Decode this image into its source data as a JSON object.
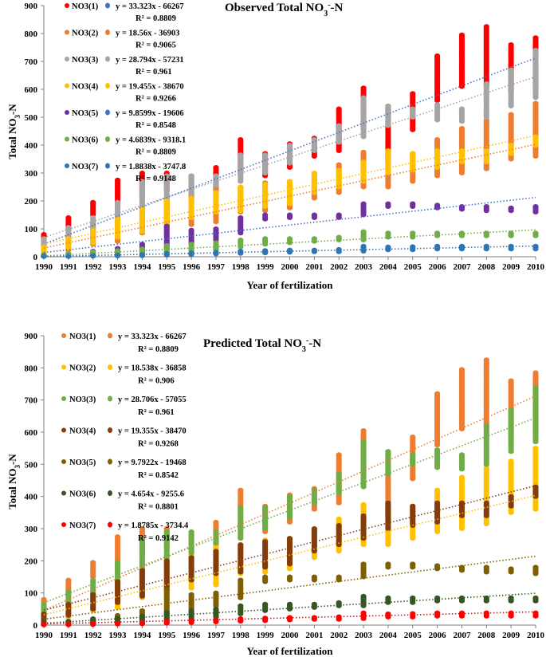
{
  "chart_data": [
    {
      "type": "scatter",
      "title_main": "Observed Total NO",
      "title_sub": "3",
      "title_sup": "-",
      "title_end": "-N",
      "xlabel": "Year of fertilization",
      "ylabel_main": "Total NO",
      "ylabel_sub": "3",
      "ylabel_end": "-N",
      "xlim": [
        1990,
        2010
      ],
      "ylim": [
        0,
        900
      ],
      "yticks": [
        0,
        100,
        200,
        300,
        400,
        500,
        600,
        700,
        800,
        900
      ],
      "years": [
        1990,
        1991,
        1992,
        1993,
        1994,
        1995,
        1996,
        1997,
        1998,
        1999,
        2000,
        2001,
        2002,
        2003,
        2004,
        2005,
        2006,
        2007,
        2008,
        2009,
        2010
      ],
      "series": [
        {
          "name": "NO3(1)",
          "color": "#ff0000",
          "trend_color": "#4472c4",
          "equation": "y = 33.323x - 66267",
          "r2": "R² = 0.8809",
          "slope": 33.323,
          "intercept": -66267,
          "min": [
            45,
            95,
            150,
            170,
            210,
            235,
            210,
            245,
            300,
            290,
            320,
            360,
            380,
            460,
            340,
            455,
            560,
            610,
            610,
            590,
            600
          ],
          "max": [
            80,
            140,
            195,
            275,
            300,
            300,
            290,
            320,
            420,
            370,
            405,
            425,
            530,
            605,
            540,
            585,
            720,
            795,
            825,
            760,
            785
          ]
        },
        {
          "name": "NO3(2)",
          "color": "#ed7d31",
          "trend_color": "#ed7d31",
          "equation": "y = 18.56x - 36903",
          "r2": "R² = 0.9065",
          "slope": 18.56,
          "intercept": -36903,
          "min": [
            5,
            25,
            45,
            55,
            85,
            85,
            115,
            125,
            160,
            165,
            175,
            210,
            230,
            250,
            250,
            270,
            290,
            300,
            315,
            350,
            360
          ],
          "max": [
            40,
            75,
            110,
            130,
            175,
            195,
            230,
            245,
            250,
            265,
            270,
            295,
            330,
            375,
            370,
            370,
            420,
            460,
            490,
            510,
            550
          ]
        },
        {
          "name": "NO3(3)",
          "color": "#a5a5a5",
          "trend_color": "#a5a5a5",
          "equation": "y = 28.794x - 57231",
          "r2": "R² = 0.961",
          "slope": 28.794,
          "intercept": -57231,
          "min": [
            30,
            65,
            95,
            120,
            170,
            185,
            225,
            255,
            270,
            300,
            335,
            380,
            410,
            430,
            470,
            500,
            490,
            485,
            500,
            540,
            570
          ],
          "max": [
            65,
            105,
            140,
            195,
            270,
            290,
            290,
            290,
            365,
            365,
            400,
            420,
            470,
            570,
            540,
            530,
            545,
            530,
            620,
            670,
            740
          ]
        },
        {
          "name": "NO3(4)",
          "color": "#ffc000",
          "trend_color": "#ffc000",
          "equation": "y = 19.455x - 38670",
          "r2": "R² = 0.9266",
          "slope": 19.455,
          "intercept": -38670,
          "min": [
            10,
            30,
            50,
            70,
            90,
            110,
            140,
            160,
            165,
            180,
            190,
            230,
            250,
            270,
            300,
            310,
            320,
            340,
            340,
            370,
            400
          ],
          "max": [
            35,
            65,
            95,
            135,
            170,
            200,
            210,
            230,
            250,
            260,
            270,
            300,
            310,
            340,
            380,
            370,
            380,
            380,
            380,
            400,
            430
          ]
        },
        {
          "name": "NO3(5)",
          "color": "#7030a0",
          "trend_color": "#4472c4",
          "equation": "y = 9.8599x - 19606",
          "r2": "R² = 0.8548",
          "slope": 9.8599,
          "intercept": -19606,
          "min": [
            2,
            4,
            6,
            10,
            15,
            30,
            40,
            60,
            85,
            135,
            140,
            140,
            140,
            150,
            180,
            180,
            175,
            170,
            165,
            165,
            160
          ],
          "max": [
            5,
            10,
            20,
            30,
            45,
            110,
            95,
            100,
            140,
            150,
            150,
            150,
            150,
            190,
            190,
            190,
            185,
            180,
            180,
            175,
            180
          ]
        },
        {
          "name": "NO3(6)",
          "color": "#70ad47",
          "trend_color": "#70ad47",
          "equation": "y = 4.6839x - 9318.1",
          "r2": "R² = 0.8809",
          "slope": 4.6839,
          "intercept": -9318.1,
          "min": [
            2,
            3,
            5,
            7,
            10,
            15,
            20,
            25,
            35,
            45,
            50,
            55,
            60,
            60,
            70,
            70,
            75,
            75,
            75,
            75,
            75
          ],
          "max": [
            8,
            12,
            18,
            22,
            28,
            40,
            45,
            50,
            60,
            65,
            65,
            65,
            70,
            90,
            85,
            85,
            85,
            85,
            85,
            85,
            85
          ]
        },
        {
          "name": "NO3(7)",
          "color": "#2e75b6",
          "trend_color": "#2e75b6",
          "equation": "y = 1.8838x - 3747.8",
          "r2": "R² = 0.9148",
          "slope": 1.8838,
          "intercept": -3747.8,
          "min": [
            1,
            1,
            2,
            3,
            4,
            6,
            8,
            10,
            12,
            14,
            16,
            18,
            18,
            20,
            25,
            25,
            28,
            28,
            28,
            28,
            28
          ],
          "max": [
            3,
            4,
            5,
            6,
            8,
            12,
            14,
            16,
            20,
            22,
            24,
            24,
            26,
            38,
            35,
            36,
            38,
            38,
            38,
            38,
            38
          ]
        }
      ]
    },
    {
      "type": "scatter",
      "title_main": "Predicted Total NO",
      "title_sub": "3",
      "title_sup": "-",
      "title_end": "-N",
      "xlabel": "Year of fertilization",
      "ylabel_main": "Total NO",
      "ylabel_sub": "3",
      "ylabel_end": "-N",
      "xlim": [
        1990,
        2010
      ],
      "ylim": [
        0,
        900
      ],
      "yticks": [
        0,
        100,
        200,
        300,
        400,
        500,
        600,
        700,
        800,
        900
      ],
      "years": [
        1990,
        1991,
        1992,
        1993,
        1994,
        1995,
        1996,
        1997,
        1998,
        1999,
        2000,
        2001,
        2002,
        2003,
        2004,
        2005,
        2006,
        2007,
        2008,
        2009,
        2010
      ],
      "series": [
        {
          "name": "NO3(1)",
          "color": "#ed7d31",
          "trend_color": "#ed7d31",
          "equation": "y = 33.323x - 66267",
          "r2": "R² = 0.8809",
          "slope": 33.323,
          "intercept": -66267,
          "min": [
            45,
            95,
            150,
            170,
            210,
            235,
            210,
            245,
            300,
            290,
            320,
            360,
            380,
            460,
            340,
            455,
            560,
            610,
            610,
            590,
            600
          ],
          "max": [
            80,
            140,
            195,
            275,
            300,
            300,
            290,
            320,
            420,
            370,
            405,
            425,
            530,
            605,
            540,
            585,
            720,
            795,
            825,
            760,
            785
          ]
        },
        {
          "name": "NO3(2)",
          "color": "#ffc000",
          "trend_color": "#ffc000",
          "equation": "y = 18.538x - 36858",
          "r2": "R² = 0.906",
          "slope": 18.538,
          "intercept": -36858,
          "min": [
            5,
            25,
            45,
            55,
            85,
            85,
            115,
            125,
            160,
            165,
            175,
            210,
            230,
            250,
            250,
            270,
            290,
            300,
            315,
            350,
            360
          ],
          "max": [
            40,
            75,
            110,
            130,
            175,
            195,
            230,
            245,
            250,
            265,
            270,
            295,
            330,
            375,
            370,
            370,
            420,
            460,
            490,
            510,
            550
          ]
        },
        {
          "name": "NO3(3)",
          "color": "#70ad47",
          "trend_color": "#70ad47",
          "equation": "y = 28.706x - 57055",
          "r2": "R² = 0.961",
          "slope": 28.706,
          "intercept": -57055,
          "min": [
            30,
            65,
            95,
            120,
            170,
            185,
            225,
            255,
            270,
            300,
            335,
            380,
            410,
            430,
            470,
            500,
            490,
            485,
            500,
            540,
            570
          ],
          "max": [
            65,
            105,
            140,
            195,
            270,
            290,
            290,
            290,
            365,
            365,
            400,
            420,
            470,
            570,
            540,
            530,
            545,
            530,
            620,
            670,
            740
          ]
        },
        {
          "name": "NO3(4)",
          "color": "#843c0c",
          "trend_color": "#843c0c",
          "equation": "y = 19.355x - 38470",
          "r2": "R² = 0.9268",
          "slope": 19.355,
          "intercept": -38470,
          "min": [
            10,
            30,
            50,
            70,
            90,
            110,
            140,
            160,
            165,
            180,
            190,
            230,
            250,
            270,
            300,
            310,
            320,
            340,
            340,
            370,
            400
          ],
          "max": [
            35,
            65,
            95,
            135,
            170,
            200,
            210,
            230,
            250,
            260,
            270,
            300,
            310,
            340,
            380,
            370,
            380,
            380,
            380,
            400,
            430
          ]
        },
        {
          "name": "NO3(5)",
          "color": "#7f6000",
          "trend_color": "#7f6000",
          "equation": "y = 9.7922x - 19468",
          "r2": "R² = 0.8542",
          "slope": 9.7922,
          "intercept": -19468,
          "min": [
            2,
            4,
            6,
            10,
            15,
            30,
            40,
            60,
            85,
            135,
            140,
            140,
            140,
            150,
            180,
            180,
            175,
            170,
            165,
            165,
            160
          ],
          "max": [
            5,
            10,
            20,
            30,
            45,
            110,
            95,
            100,
            140,
            150,
            150,
            150,
            150,
            190,
            190,
            190,
            185,
            180,
            180,
            175,
            180
          ]
        },
        {
          "name": "NO3(6)",
          "color": "#375623",
          "trend_color": "#375623",
          "equation": "y = 4.654x - 9255.6",
          "r2": "R² = 0.8801",
          "slope": 4.654,
          "intercept": -9255.6,
          "min": [
            2,
            3,
            5,
            7,
            10,
            15,
            20,
            25,
            35,
            45,
            50,
            55,
            60,
            60,
            70,
            70,
            75,
            75,
            75,
            75,
            75
          ],
          "max": [
            8,
            12,
            18,
            22,
            28,
            40,
            45,
            50,
            60,
            65,
            65,
            65,
            70,
            90,
            85,
            85,
            85,
            85,
            85,
            85,
            85
          ]
        },
        {
          "name": "NO3(7)",
          "color": "#ff0000",
          "trend_color": "#ff0000",
          "equation": "y = 1.8785x - 3734.4",
          "r2": "R² = 0.9142",
          "slope": 1.8785,
          "intercept": -3734.4,
          "min": [
            1,
            1,
            2,
            3,
            4,
            6,
            8,
            10,
            12,
            14,
            16,
            18,
            18,
            20,
            25,
            25,
            28,
            28,
            28,
            28,
            28
          ],
          "max": [
            3,
            4,
            5,
            6,
            8,
            12,
            14,
            16,
            20,
            22,
            24,
            24,
            26,
            38,
            35,
            36,
            38,
            38,
            38,
            38,
            38
          ]
        }
      ]
    }
  ]
}
